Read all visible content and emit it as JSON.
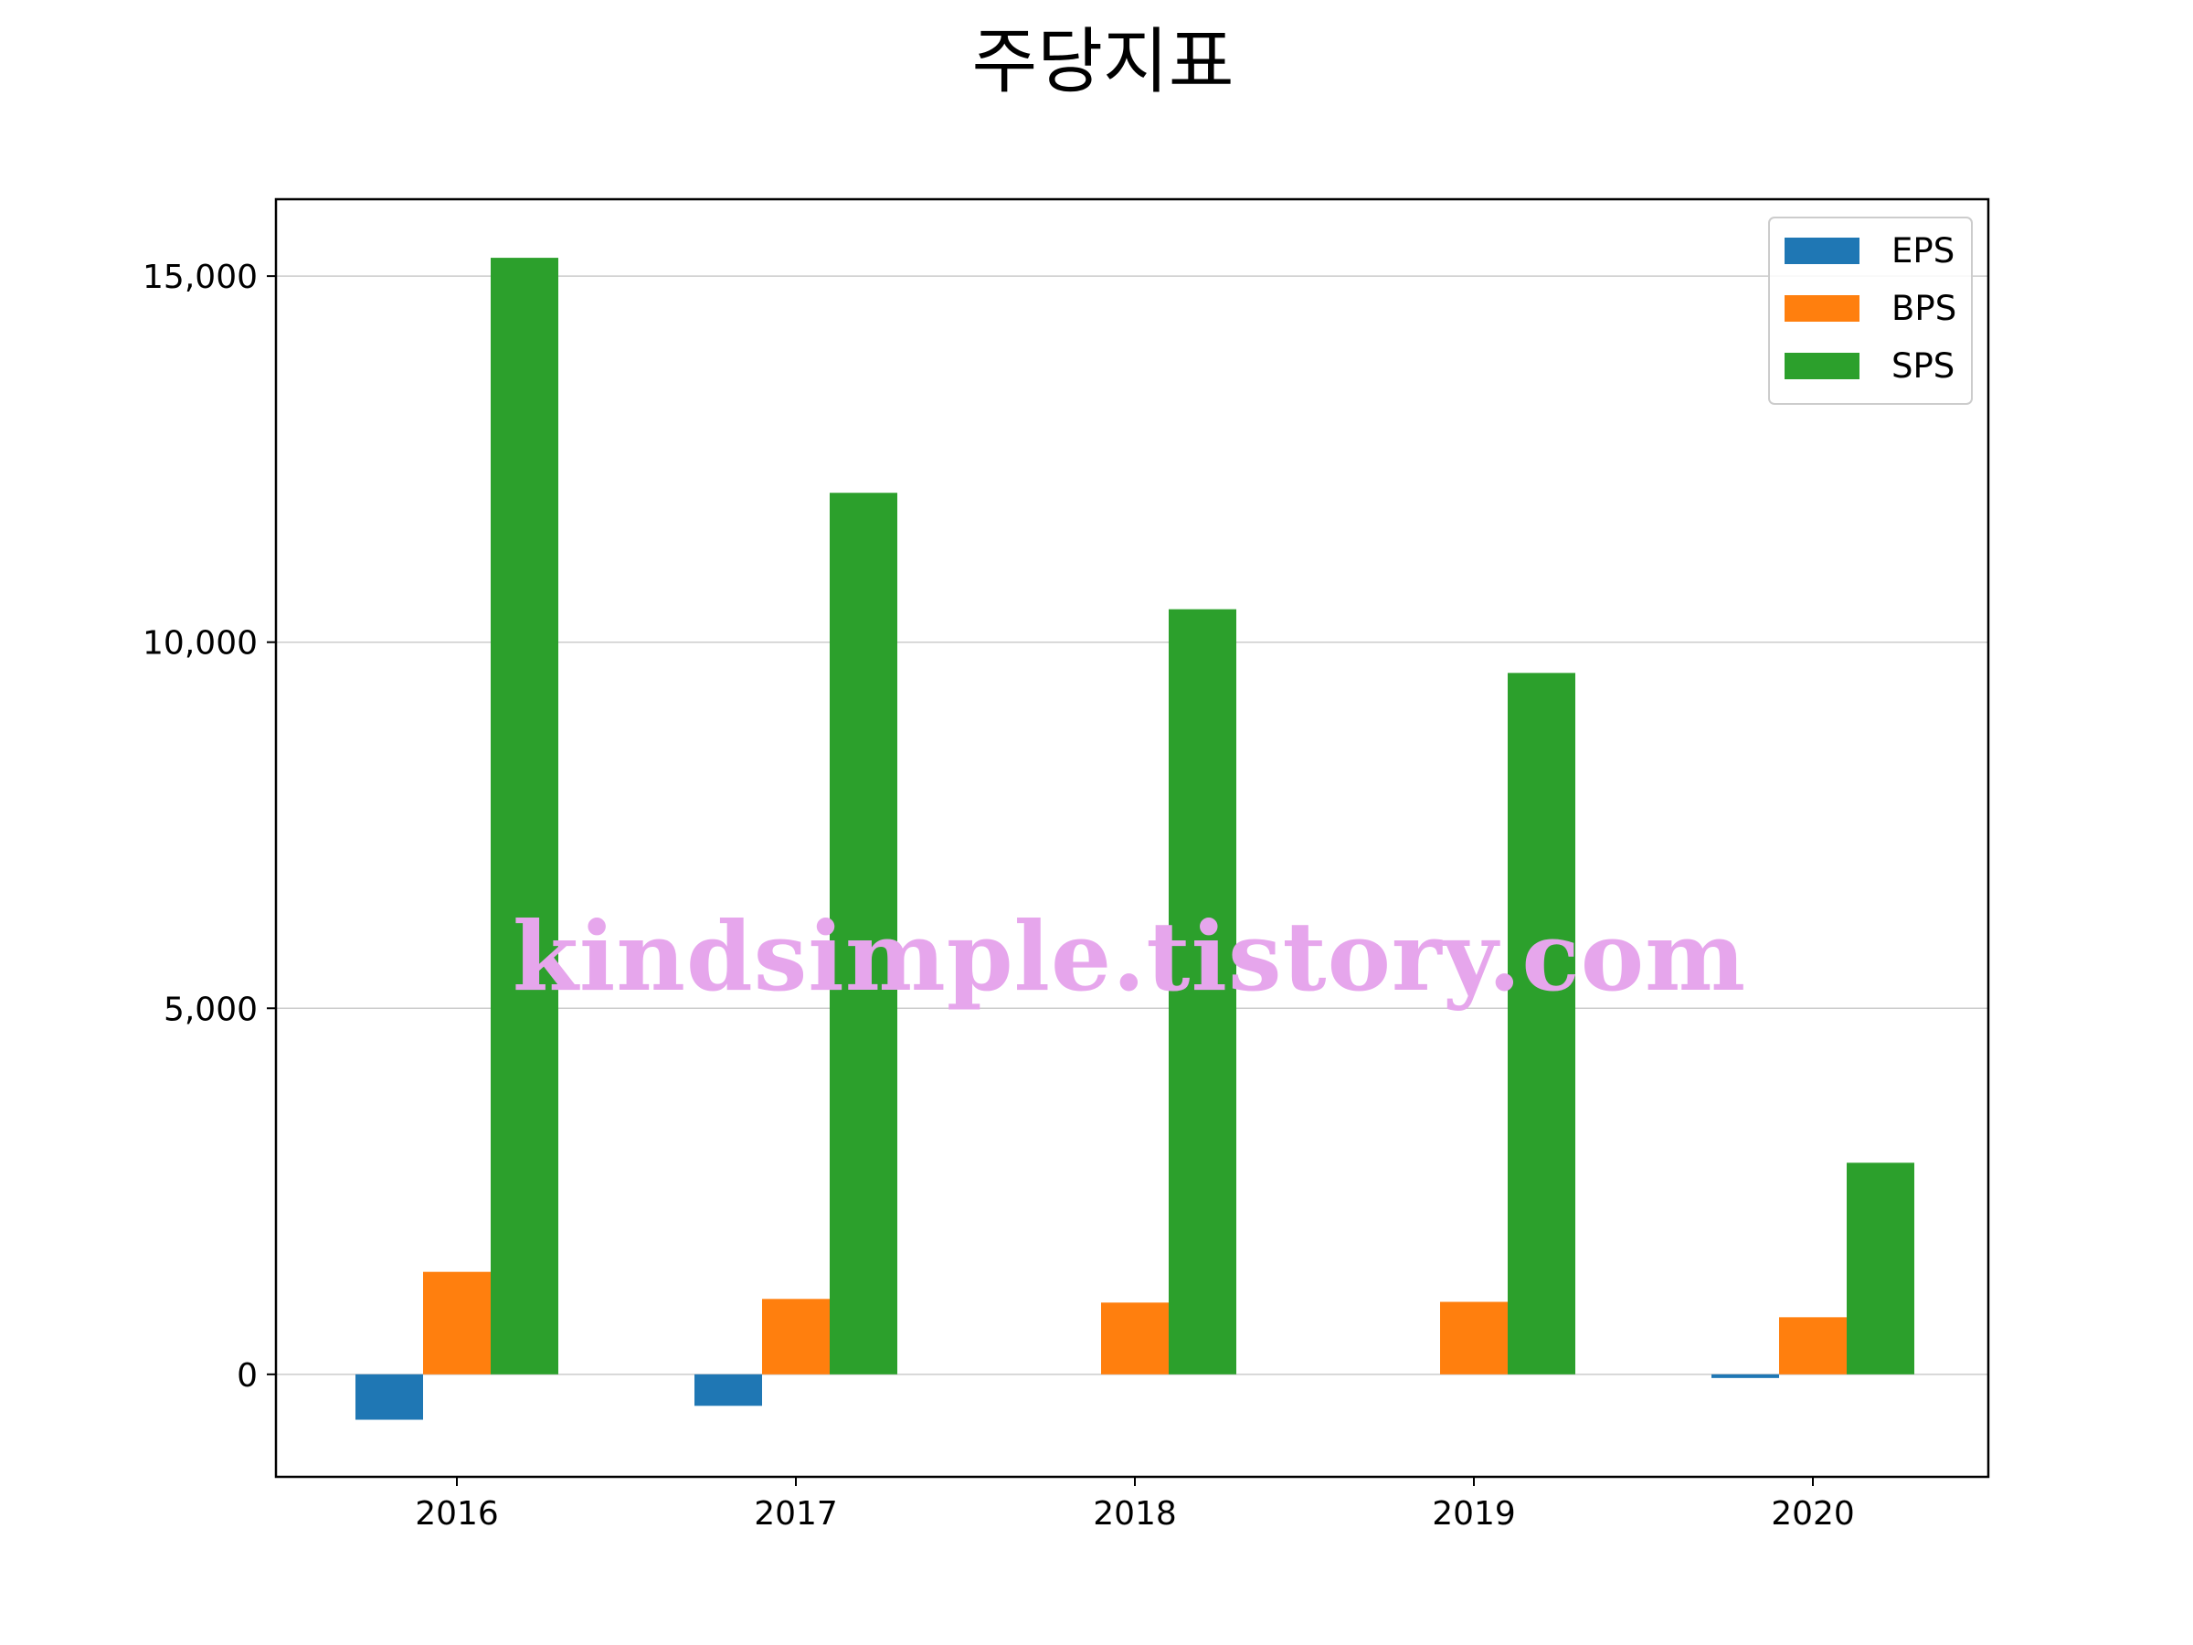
{
  "chart_data": {
    "type": "bar",
    "title": "주당지표",
    "xlabel": "",
    "ylabel": "",
    "categories": [
      "2016",
      "2017",
      "2018",
      "2019",
      "2020"
    ],
    "series": [
      {
        "name": "EPS",
        "color": "#1f77b4",
        "values": [
          -620,
          -430,
          0,
          0,
          -50
        ]
      },
      {
        "name": "BPS",
        "color": "#ff7f0e",
        "values": [
          1400,
          1030,
          980,
          990,
          780
        ]
      },
      {
        "name": "SPS",
        "color": "#2ca02c",
        "values": [
          15250,
          12040,
          10450,
          9580,
          2890
        ]
      }
    ],
    "ylim": [
      -1400,
      16050
    ],
    "yticks": [
      0,
      5000,
      10000,
      15000
    ],
    "ytick_labels": [
      "0",
      "5,000",
      "10,000",
      "15,000"
    ],
    "grid": "y",
    "legend": "top-right"
  },
  "watermark": "kindsimple.tistory.com"
}
